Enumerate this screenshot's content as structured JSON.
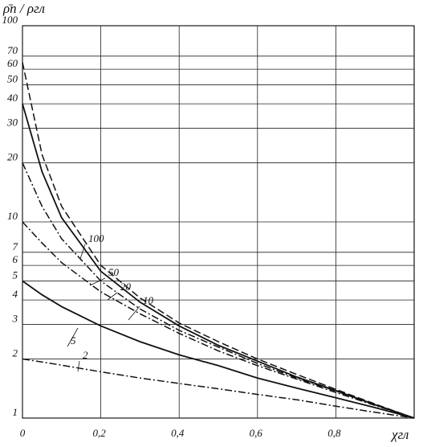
{
  "chart_data": {
    "type": "line",
    "y_label": "ρ̄п / ρгл",
    "x_label": "χгл",
    "xlim": [
      0,
      1
    ],
    "ylim": [
      1,
      100
    ],
    "log_y": true,
    "grid": true,
    "xticks": [
      0,
      {
        "value": 0.2,
        "label": "0,2"
      },
      {
        "value": 0.4,
        "label": "0,4"
      },
      {
        "value": 0.6,
        "label": "0,6"
      },
      {
        "value": 0.8,
        "label": "0,8"
      }
    ],
    "yticks": [
      1,
      2,
      3,
      4,
      5,
      6,
      7,
      10,
      20,
      30,
      40,
      50,
      60,
      70,
      100
    ],
    "x": [
      0,
      0.05,
      0.1,
      0.2,
      0.3,
      0.4,
      0.5,
      0.6,
      0.7,
      0.8,
      0.9,
      1
    ],
    "series": [
      {
        "name": "2",
        "color": "#111",
        "dash": "dashdot",
        "values": [
          2,
          1.93,
          1.86,
          1.72,
          1.6,
          1.5,
          1.41,
          1.32,
          1.24,
          1.15,
          1.07,
          1
        ]
      },
      {
        "name": "5",
        "color": "#111",
        "dash": "solid",
        "values": [
          5,
          4.25,
          3.7,
          2.95,
          2.45,
          2.1,
          1.85,
          1.6,
          1.42,
          1.27,
          1.13,
          1
        ]
      },
      {
        "name": "10",
        "color": "#111",
        "dash": "dashdot",
        "values": [
          10,
          7.8,
          6.2,
          4.4,
          3.4,
          2.7,
          2.2,
          1.85,
          1.58,
          1.35,
          1.16,
          1
        ]
      },
      {
        "name": "20",
        "color": "#111",
        "dash": "dashdot",
        "values": [
          20,
          12,
          8.2,
          5.0,
          3.6,
          2.8,
          2.3,
          1.9,
          1.6,
          1.37,
          1.17,
          1
        ]
      },
      {
        "name": "50",
        "color": "#111",
        "dash": "solid",
        "values": [
          40,
          18,
          10.5,
          5.6,
          3.9,
          2.95,
          2.35,
          1.95,
          1.62,
          1.38,
          1.17,
          1
        ]
      },
      {
        "name": "100",
        "color": "#111",
        "dash": "dashed",
        "values": [
          65,
          22,
          12,
          6,
          4.1,
          3.05,
          2.45,
          2.0,
          1.67,
          1.4,
          1.18,
          1
        ]
      }
    ]
  }
}
